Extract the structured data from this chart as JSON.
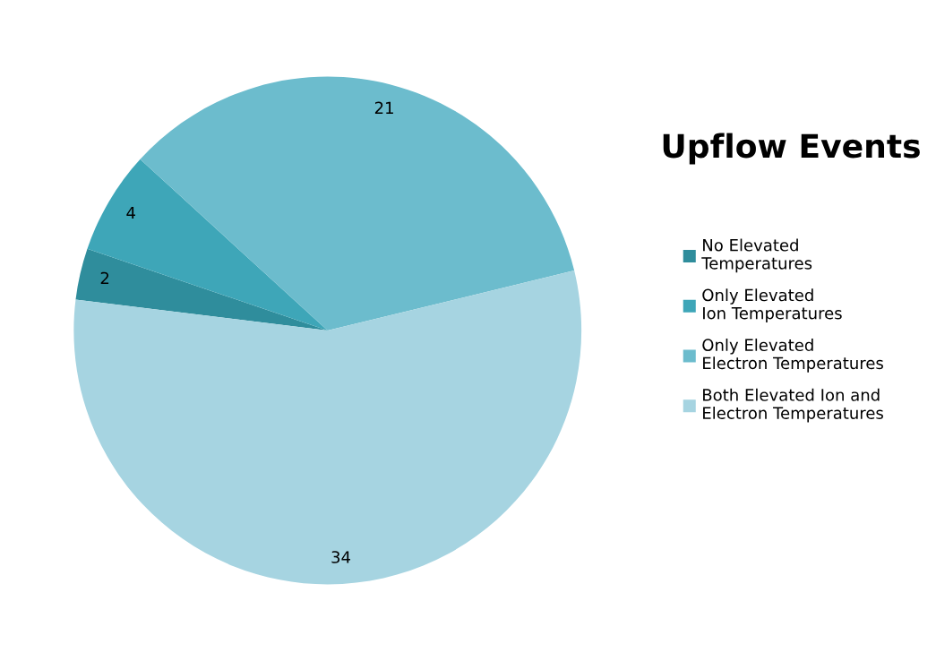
{
  "chart_data": {
    "type": "pie",
    "title": "Upflow Events",
    "categories": [
      "No Elevated Temperatures",
      "Only Elevated Ion Temperatures",
      "Only Elevated Electron Temperatures",
      "Both Elevated Ion and Electron Temperatures"
    ],
    "values": [
      2,
      4,
      21,
      34
    ],
    "colors": [
      "#2f8d9c",
      "#3ea6b8",
      "#6cbccd",
      "#a6d4e1"
    ],
    "data_labels": true,
    "legend": "right"
  }
}
